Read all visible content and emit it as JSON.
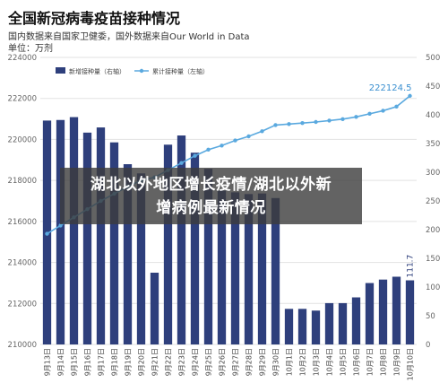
{
  "header": {
    "title": "全国新冠病毒疫苗接种情况",
    "source_line1": "国内数据来自国家卫健委，国外数据来自Our World in Data",
    "source_line2": "单位：万剂"
  },
  "banner": {
    "line1": "湖北以外地区增长疫情/湖北以外新",
    "line2": "增病例最新情况"
  },
  "colors": {
    "bar": "#2e3f7c",
    "line": "#5aa9df",
    "grid": "#e2e2e2",
    "axis_text": "#666666"
  },
  "chart_data": {
    "type": "bar",
    "categories": [
      "9月13日",
      "9月14日",
      "9月15日",
      "9月16日",
      "9月17日",
      "9月18日",
      "9月19日",
      "9月20日",
      "9月21日",
      "9月22日",
      "9月23日",
      "9月24日",
      "9月25日",
      "9月26日",
      "9月27日",
      "9月28日",
      "9月29日",
      "9月30日",
      "10月1日",
      "10月2日",
      "10月3日",
      "10月4日",
      "10月5日",
      "10月6日",
      "10月7日",
      "10月8日",
      "10月9日",
      "10月10日"
    ],
    "series": [
      {
        "name": "新增接种量（右轴）",
        "type": "bar",
        "axis": "right",
        "values": [
          390,
          391,
          396,
          369,
          378,
          352,
          314,
          298,
          125,
          348,
          364,
          334,
          306,
          268,
          265,
          262,
          263,
          255,
          62,
          62,
          59,
          72,
          72,
          82,
          107,
          113,
          118,
          111.7
        ]
      },
      {
        "name": "累计接种量（左轴）",
        "type": "line",
        "axis": "left",
        "values": [
          215400,
          215800,
          216200,
          216600,
          217000,
          217350,
          217700,
          218000,
          218150,
          218500,
          218850,
          219200,
          219500,
          219700,
          219950,
          220150,
          220400,
          220700,
          220750,
          220800,
          220850,
          220920,
          220990,
          221100,
          221250,
          221400,
          221600,
          222124.5
        ]
      }
    ],
    "y_left": {
      "min": 210000,
      "max": 224000,
      "ticks": [
        "210000",
        "212000",
        "214000",
        "216000",
        "218000",
        "220000",
        "222000",
        "224000"
      ]
    },
    "y_right": {
      "min": 0,
      "max": 500,
      "ticks": [
        "0",
        "50",
        "100",
        "150",
        "200",
        "250",
        "300",
        "350",
        "400",
        "450",
        "500"
      ]
    },
    "data_labels": {
      "last_bar": "111.7",
      "last_point": "222124.5"
    },
    "legend_position": "top-left",
    "grid": true
  }
}
